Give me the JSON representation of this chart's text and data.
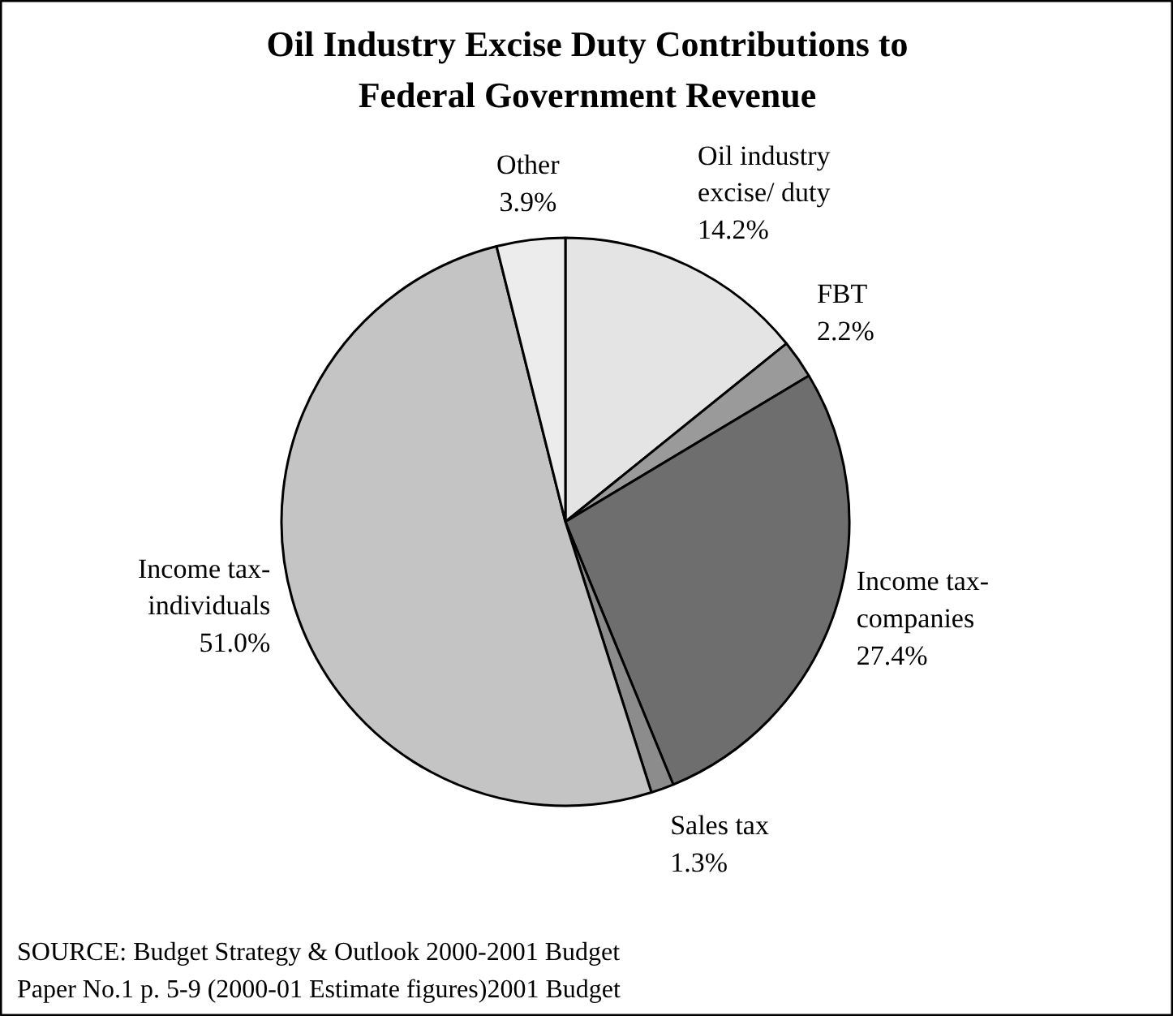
{
  "chart_data": {
    "type": "pie",
    "title": "Oil Industry Excise Duty Contributions to\nFederal Government Revenue",
    "categories": [
      "Oil industry\nexcise/ duty",
      "FBT",
      "Income tax-\ncompanies",
      "Sales tax",
      "Income tax-\nindividuals",
      "Other"
    ],
    "values": [
      14.2,
      2.2,
      27.4,
      1.3,
      51.0,
      3.9
    ],
    "value_labels": [
      "14.2%",
      "2.2%",
      "27.4%",
      "1.3%",
      "51.0%",
      "3.9%"
    ],
    "colors": [
      "#e4e4e4",
      "#9a9a9a",
      "#6e6e6e",
      "#8c8c8c",
      "#c4c4c4",
      "#ececec"
    ],
    "annotations": [
      "SOURCE: Budget Strategy & Outlook 2000-2001 Budget\nPaper No.1 p. 5-9 (2000-01 Estimate figures)2001 Budget"
    ]
  }
}
